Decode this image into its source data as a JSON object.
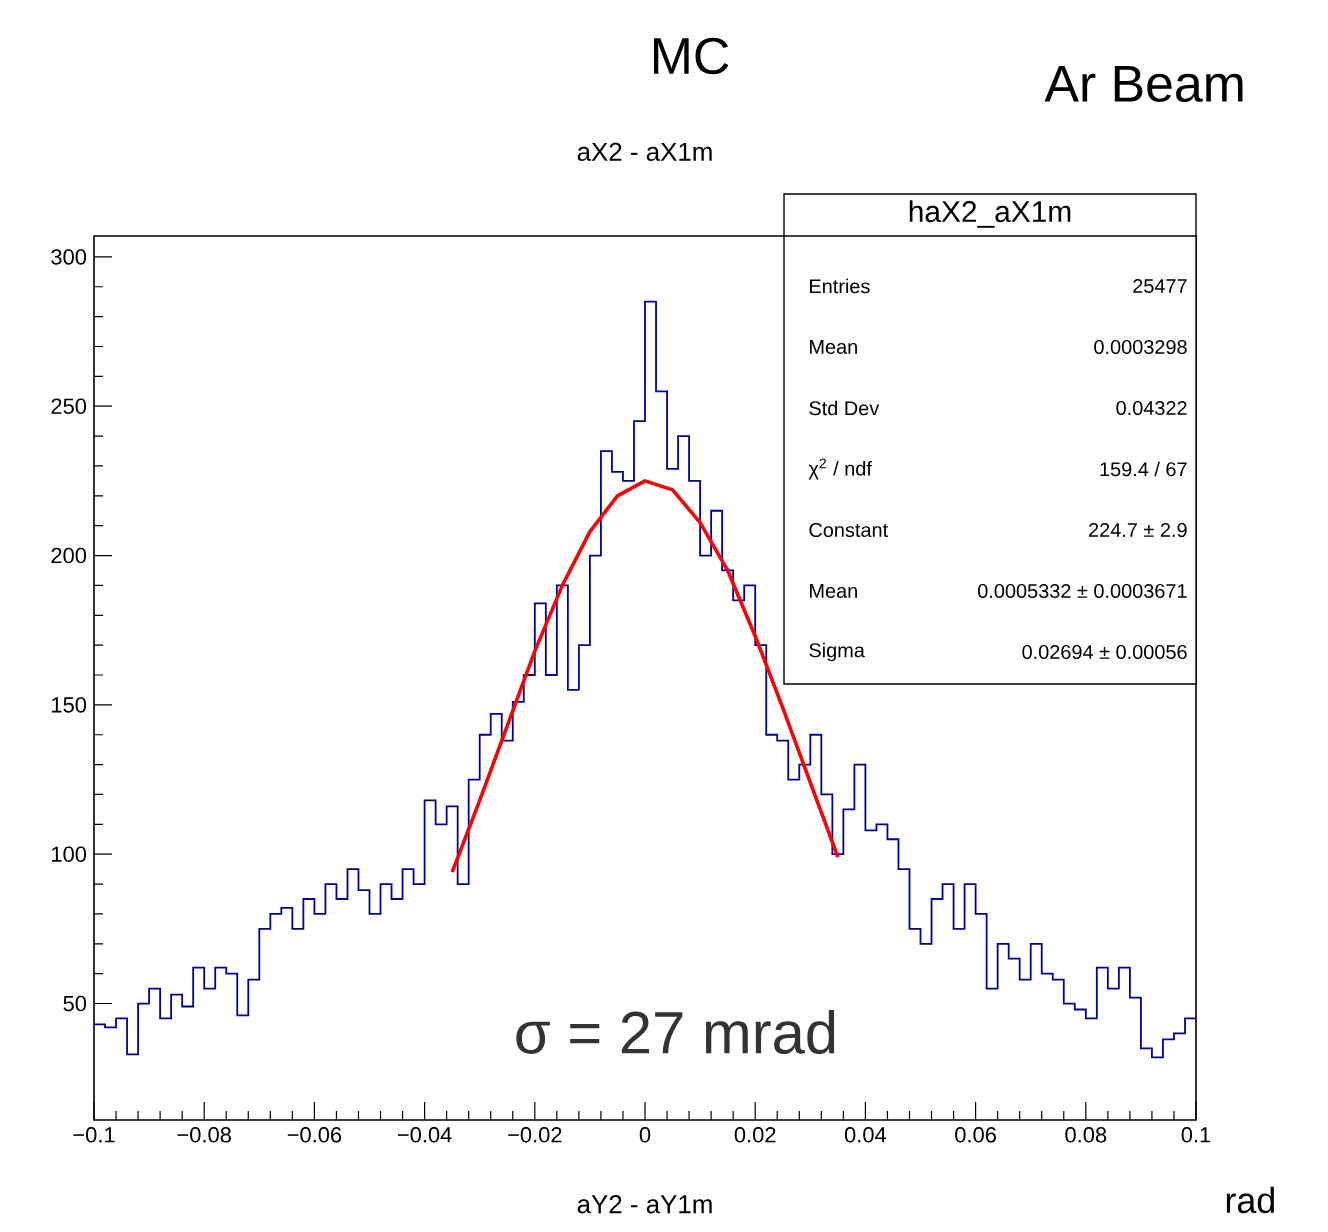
{
  "chart_data": {
    "type": "histogram",
    "title": "aX2 - aX1m",
    "xlabel": "aY2 - aY1m",
    "annotations": [
      "MC",
      "Ar Beam",
      "σ = 27 mrad",
      "rad",
      "haX2_aX1m",
      "Entries",
      "25477",
      "Mean",
      "0.0003298",
      "Std Dev",
      "0.04322",
      "χ$^{2}$ / ndf",
      "159.4 / 67",
      "Constant",
      "224.7 ± 2.9",
      "Mean",
      "0.0005332 ± 0.0003671",
      "Sigma",
      "0.02694 ± 0.00056"
    ],
    "xlim": [
      -0.1,
      0.1
    ],
    "xticks": [
      {
        "value": -0.1,
        "label": "−0.1"
      },
      {
        "value": -0.08,
        "label": "−0.08"
      },
      {
        "value": -0.06,
        "label": "−0.06"
      },
      {
        "value": -0.04,
        "label": "−0.04"
      },
      {
        "value": -0.02,
        "label": "−0.02"
      },
      0,
      0.02,
      0.04,
      0.06,
      0.08,
      0.1
    ],
    "ylim": [
      11,
      307
    ],
    "yticks": [
      50,
      100,
      150,
      200,
      250,
      300
    ],
    "series": [
      {
        "color": "#000099",
        "bins": [
          -0.1,
          -0.098,
          -0.096,
          -0.094,
          -0.092,
          -0.09,
          -0.088,
          -0.086,
          -0.084,
          -0.082,
          -0.08,
          -0.078,
          -0.076,
          -0.074,
          -0.072,
          -0.07,
          -0.068,
          -0.066,
          -0.064,
          -0.062,
          -0.06,
          -0.058,
          -0.056,
          -0.054,
          -0.052,
          -0.05,
          -0.048,
          -0.046,
          -0.044,
          -0.042,
          -0.04,
          -0.038,
          -0.036,
          -0.034,
          -0.032,
          -0.03,
          -0.028,
          -0.026,
          -0.024,
          -0.022,
          -0.02,
          -0.018,
          -0.016,
          -0.014,
          -0.012,
          -0.01,
          -0.008,
          -0.006,
          -0.004,
          -0.002,
          0,
          0.002,
          0.004,
          0.006,
          0.008,
          0.01,
          0.012,
          0.014,
          0.016,
          0.018,
          0.02,
          0.022,
          0.024,
          0.026,
          0.028,
          0.03,
          0.032,
          0.034,
          0.036,
          0.038,
          0.04,
          0.042,
          0.044,
          0.046,
          0.048,
          0.05,
          0.052,
          0.054,
          0.056,
          0.058,
          0.06,
          0.062,
          0.064,
          0.066,
          0.068,
          0.07,
          0.072,
          0.074,
          0.076,
          0.078,
          0.08,
          0.082,
          0.084,
          0.086,
          0.088,
          0.09,
          0.092,
          0.094,
          0.096,
          0.098,
          0.1
        ],
        "values": [
          43,
          42,
          45,
          33,
          50,
          55,
          45,
          53,
          49,
          62,
          55,
          62,
          60,
          46,
          58,
          75,
          80,
          82,
          75,
          85,
          80,
          90,
          85,
          95,
          88,
          80,
          90,
          85,
          95,
          90,
          118,
          110,
          116,
          90,
          125,
          140,
          147,
          138,
          151,
          160,
          184,
          160,
          190,
          155,
          170,
          200,
          235,
          228,
          225,
          245,
          285,
          255,
          229,
          240,
          225,
          200,
          215,
          195,
          185,
          190,
          170,
          140,
          138,
          125,
          130,
          140,
          120,
          100,
          115,
          130,
          108,
          110,
          105,
          95,
          75,
          70,
          85,
          90,
          75,
          90,
          80,
          55,
          70,
          65,
          58,
          70,
          60,
          58,
          50,
          48,
          45,
          62,
          55,
          62,
          52,
          35,
          32,
          38,
          40,
          45
        ]
      },
      {
        "type": "line",
        "color": "#ff0000",
        "x": [
          -0.035,
          -0.03,
          -0.025,
          -0.02,
          -0.015,
          -0.01,
          -0.005,
          0,
          0.005,
          0.01,
          0.015,
          0.02,
          0.025,
          0.03,
          0.035
        ],
        "values": [
          94,
          118,
          143,
          168,
          190,
          208,
          220,
          225,
          222,
          211,
          195,
          173,
          149,
          124,
          99
        ]
      }
    ]
  }
}
